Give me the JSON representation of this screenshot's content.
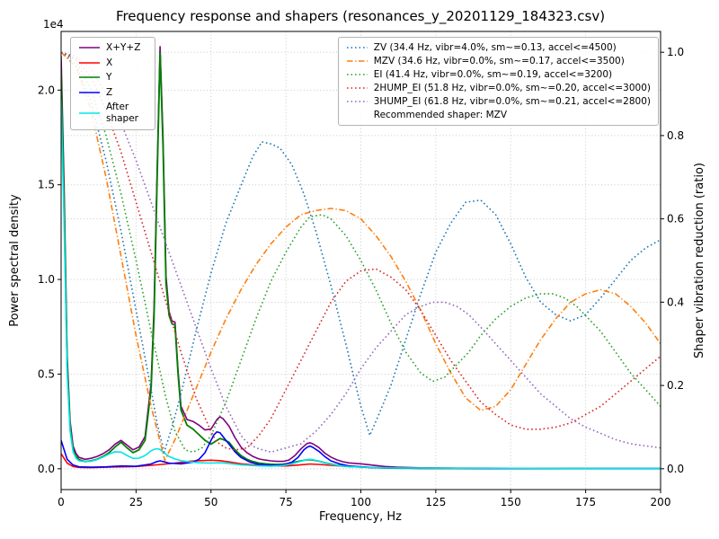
{
  "title": "Frequency response and shapers (resonances_y_20201129_184323.csv)",
  "axes": {
    "x": {
      "label": "Frequency, Hz",
      "min": 0,
      "max": 200,
      "ticks": [
        0,
        25,
        50,
        75,
        100,
        125,
        150,
        175,
        200
      ],
      "tick_labels": [
        "0",
        "25",
        "50",
        "75",
        "100",
        "125",
        "150",
        "175",
        "200"
      ]
    },
    "y_left": {
      "label": "Power spectral density",
      "offset_text": "1e4",
      "min": -1100,
      "max": 23100,
      "ticks": [
        0,
        5000,
        10000,
        15000,
        20000
      ],
      "tick_labels": [
        "0.0",
        "0.5",
        "1.0",
        "1.5",
        "2.0"
      ]
    },
    "y_right": {
      "label": "Shaper vibration reduction (ratio)",
      "min": -0.05,
      "max": 1.05,
      "ticks": [
        0,
        0.2,
        0.4,
        0.6,
        0.8,
        1.0
      ],
      "tick_labels": [
        "0.0",
        "0.2",
        "0.4",
        "0.6",
        "0.8",
        "1.0"
      ]
    }
  },
  "legend_psd": {
    "items": [
      {
        "label": "X+Y+Z",
        "color": "#800080",
        "style": "solid"
      },
      {
        "label": "X",
        "color": "#ff0000",
        "style": "solid"
      },
      {
        "label": "Y",
        "color": "#008000",
        "style": "solid"
      },
      {
        "label": "Z",
        "color": "#0000ff",
        "style": "solid"
      },
      {
        "label": "After shaper",
        "color": "#00e5e5",
        "style": "solid"
      }
    ]
  },
  "legend_shapers": {
    "items": [
      {
        "label": "ZV (34.4 Hz, vibr=4.0%, sm~=0.13, accel<=4500)",
        "color": "#1f77b4",
        "style": "dotted"
      },
      {
        "label": "MZV (34.6 Hz, vibr=0.0%, sm~=0.17, accel<=3500)",
        "color": "#ff7f0e",
        "style": "dashdot"
      },
      {
        "label": "EI (41.4 Hz, vibr=0.0%, sm~=0.19, accel<=3200)",
        "color": "#2ca02c",
        "style": "dotted"
      },
      {
        "label": "2HUMP_EI (51.8 Hz, vibr=0.0%, sm~=0.20, accel<=3000)",
        "color": "#d62728",
        "style": "dotted"
      },
      {
        "label": "3HUMP_EI (61.8 Hz, vibr=0.0%, sm~=0.21, accel<=2800)",
        "color": "#9467bd",
        "style": "dotted"
      }
    ],
    "note": "Recommended shaper: MZV"
  },
  "chart_data": {
    "type": "line",
    "x_unit": "Hz",
    "left_axis_unit": "power spectral density",
    "right_axis_unit": "vibration reduction ratio",
    "series": [
      {
        "name": "X+Y+Z",
        "axis": "left",
        "color": "#800080",
        "style": "solid",
        "width": 1.6,
        "x": [
          0,
          1,
          2,
          3,
          4,
          5,
          6,
          8,
          10,
          12,
          14,
          16,
          18,
          20,
          22,
          24,
          26,
          28,
          30,
          31,
          32,
          33,
          34,
          35,
          36,
          37,
          38,
          39,
          40,
          42,
          44,
          46,
          48,
          50,
          52,
          53,
          54,
          56,
          58,
          60,
          62,
          64,
          66,
          68,
          70,
          72,
          74,
          76,
          78,
          80,
          82,
          83,
          84,
          86,
          88,
          90,
          92,
          94,
          96,
          100,
          104,
          108,
          112,
          120,
          130,
          140,
          160,
          180,
          200
        ],
        "y": [
          21800,
          15000,
          6000,
          2500,
          1200,
          800,
          600,
          500,
          550,
          650,
          800,
          1000,
          1300,
          1500,
          1250,
          1000,
          1150,
          1700,
          4500,
          8500,
          15500,
          22300,
          17500,
          10200,
          8300,
          7800,
          7750,
          5200,
          3300,
          2600,
          2500,
          2300,
          2050,
          2100,
          2600,
          2750,
          2650,
          2250,
          1650,
          1150,
          850,
          650,
          520,
          460,
          420,
          390,
          390,
          460,
          700,
          1050,
          1330,
          1370,
          1320,
          1120,
          820,
          620,
          470,
          370,
          310,
          260,
          190,
          120,
          80,
          50,
          35,
          28,
          20,
          15,
          12
        ]
      },
      {
        "name": "X",
        "axis": "left",
        "color": "#ff0000",
        "style": "solid",
        "width": 1.6,
        "x": [
          0,
          2,
          4,
          6,
          10,
          15,
          20,
          25,
          30,
          35,
          38,
          40,
          43,
          46,
          50,
          53,
          56,
          60,
          65,
          70,
          75,
          80,
          83,
          86,
          90,
          95,
          100,
          105,
          110,
          120,
          140,
          170,
          200
        ],
        "y": [
          800,
          300,
          120,
          70,
          60,
          80,
          100,
          120,
          180,
          250,
          300,
          340,
          400,
          430,
          450,
          430,
          360,
          260,
          190,
          150,
          150,
          210,
          250,
          230,
          180,
          130,
          100,
          60,
          40,
          25,
          20,
          15,
          12
        ]
      },
      {
        "name": "Y",
        "axis": "left",
        "color": "#008000",
        "style": "solid",
        "width": 1.8,
        "x": [
          0,
          1,
          2,
          3,
          4,
          5,
          6,
          8,
          10,
          12,
          14,
          16,
          18,
          20,
          22,
          24,
          26,
          28,
          30,
          31,
          32,
          33,
          34,
          35,
          36,
          37,
          38,
          39,
          40,
          42,
          44,
          46,
          48,
          50,
          52,
          53,
          54,
          56,
          58,
          60,
          62,
          64,
          66,
          68,
          70,
          72,
          74,
          76,
          78,
          80,
          82,
          83,
          84,
          86,
          88,
          90,
          92,
          94,
          96,
          100,
          104,
          108,
          112,
          120,
          130,
          140,
          160,
          180,
          200
        ],
        "y": [
          21000,
          14000,
          5500,
          2200,
          1000,
          650,
          480,
          380,
          420,
          500,
          650,
          850,
          1150,
          1400,
          1100,
          850,
          1000,
          1500,
          4200,
          8000,
          15000,
          22000,
          17000,
          9800,
          8100,
          7650,
          7600,
          5000,
          3100,
          2300,
          2100,
          1800,
          1500,
          1300,
          1500,
          1600,
          1550,
          1400,
          1000,
          700,
          500,
          380,
          300,
          260,
          240,
          230,
          240,
          280,
          350,
          420,
          470,
          480,
          460,
          400,
          320,
          250,
          190,
          150,
          120,
          90,
          60,
          40,
          30,
          25,
          22,
          20,
          15,
          12,
          10
        ]
      },
      {
        "name": "Z",
        "axis": "left",
        "color": "#0000ff",
        "style": "solid",
        "width": 1.6,
        "x": [
          0,
          2,
          4,
          6,
          10,
          15,
          20,
          25,
          30,
          32,
          33,
          34,
          36,
          40,
          44,
          46,
          48,
          50,
          51,
          52,
          53,
          54,
          56,
          58,
          60,
          63,
          66,
          70,
          74,
          77,
          79,
          81,
          82,
          83,
          84,
          86,
          88,
          90,
          93,
          96,
          100,
          104,
          110,
          120,
          140,
          170,
          200
        ],
        "y": [
          1500,
          500,
          200,
          100,
          80,
          100,
          150,
          130,
          250,
          380,
          420,
          380,
          300,
          260,
          350,
          500,
          850,
          1500,
          1800,
          1950,
          1900,
          1700,
          1300,
          900,
          600,
          350,
          230,
          180,
          200,
          350,
          600,
          1000,
          1130,
          1200,
          1130,
          920,
          640,
          420,
          250,
          150,
          100,
          60,
          40,
          25,
          20,
          15,
          12
        ]
      },
      {
        "name": "After shaper",
        "axis": "left",
        "color": "#00e5e5",
        "style": "solid",
        "width": 1.6,
        "x": [
          0,
          1,
          2,
          3,
          4,
          5,
          6,
          8,
          10,
          12,
          14,
          16,
          18,
          20,
          22,
          24,
          26,
          28,
          30,
          31,
          32,
          33,
          34,
          36,
          38,
          40,
          43,
          46,
          50,
          53,
          56,
          60,
          65,
          70,
          74,
          77,
          80,
          82,
          83,
          84,
          86,
          88,
          90,
          93,
          96,
          100,
          105,
          110,
          120,
          140,
          170,
          200
        ],
        "y": [
          19500,
          13000,
          5000,
          2000,
          900,
          550,
          420,
          380,
          400,
          480,
          620,
          780,
          900,
          880,
          700,
          550,
          560,
          700,
          950,
          1020,
          1060,
          1020,
          880,
          650,
          520,
          430,
          360,
          320,
          300,
          320,
          280,
          210,
          160,
          140,
          170,
          260,
          400,
          480,
          500,
          480,
          400,
          310,
          240,
          160,
          110,
          85,
          60,
          45,
          35,
          28,
          22,
          20
        ]
      },
      {
        "name": "ZV",
        "axis": "right",
        "color": "#1f77b4",
        "style": "dotted",
        "width": 1.6,
        "x": [
          0,
          5,
          10,
          15,
          20,
          25,
          30,
          32,
          34.4,
          37,
          40,
          45,
          50,
          55,
          60,
          64,
          67,
          70,
          73,
          77,
          81,
          85,
          90,
          95,
          100,
          103,
          106,
          110,
          115,
          120,
          125,
          130,
          135,
          140,
          145,
          150,
          155,
          160,
          165,
          170,
          175,
          180,
          185,
          190,
          195,
          200
        ],
        "y": [
          1.0,
          0.97,
          0.88,
          0.74,
          0.57,
          0.38,
          0.19,
          0.11,
          0.04,
          0.1,
          0.18,
          0.33,
          0.47,
          0.59,
          0.68,
          0.75,
          0.785,
          0.78,
          0.77,
          0.73,
          0.66,
          0.57,
          0.44,
          0.3,
          0.15,
          0.08,
          0.13,
          0.2,
          0.31,
          0.42,
          0.52,
          0.59,
          0.64,
          0.645,
          0.61,
          0.54,
          0.46,
          0.4,
          0.37,
          0.355,
          0.37,
          0.41,
          0.455,
          0.5,
          0.53,
          0.55
        ]
      },
      {
        "name": "MZV",
        "axis": "right",
        "color": "#ff7f0e",
        "style": "dashdot",
        "width": 1.6,
        "x": [
          0,
          5,
          10,
          15,
          20,
          25,
          30,
          34.6,
          38,
          42,
          46,
          50,
          55,
          60,
          65,
          70,
          75,
          80,
          85,
          90,
          95,
          100,
          105,
          110,
          115,
          120,
          125,
          130,
          135,
          140,
          145,
          150,
          155,
          160,
          165,
          170,
          175,
          180,
          185,
          190,
          195,
          200
        ],
        "y": [
          1.0,
          0.965,
          0.86,
          0.7,
          0.51,
          0.32,
          0.15,
          0.02,
          0.07,
          0.14,
          0.21,
          0.28,
          0.36,
          0.43,
          0.49,
          0.54,
          0.58,
          0.61,
          0.62,
          0.625,
          0.62,
          0.6,
          0.56,
          0.51,
          0.45,
          0.38,
          0.3,
          0.23,
          0.17,
          0.14,
          0.15,
          0.19,
          0.25,
          0.31,
          0.36,
          0.4,
          0.42,
          0.43,
          0.42,
          0.39,
          0.35,
          0.3
        ]
      },
      {
        "name": "EI",
        "axis": "right",
        "color": "#2ca02c",
        "style": "dotted",
        "width": 1.6,
        "x": [
          0,
          5,
          10,
          15,
          20,
          25,
          30,
          35,
          38,
          41.4,
          44,
          47,
          50,
          55,
          60,
          65,
          70,
          75,
          80,
          83,
          87,
          90,
          95,
          100,
          105,
          110,
          115,
          120,
          124,
          128,
          132,
          136,
          140,
          145,
          150,
          155,
          160,
          164,
          168,
          172,
          176,
          180,
          185,
          190,
          195,
          200
        ],
        "y": [
          1.0,
          0.98,
          0.91,
          0.8,
          0.66,
          0.5,
          0.33,
          0.17,
          0.09,
          0.045,
          0.04,
          0.05,
          0.08,
          0.16,
          0.26,
          0.36,
          0.45,
          0.52,
          0.58,
          0.605,
          0.61,
          0.6,
          0.56,
          0.5,
          0.43,
          0.35,
          0.28,
          0.23,
          0.21,
          0.22,
          0.25,
          0.28,
          0.32,
          0.36,
          0.39,
          0.41,
          0.42,
          0.42,
          0.41,
          0.39,
          0.36,
          0.33,
          0.28,
          0.23,
          0.19,
          0.15
        ]
      },
      {
        "name": "2HUMP_EI",
        "axis": "right",
        "color": "#d62728",
        "style": "dotted",
        "width": 1.6,
        "x": [
          0,
          5,
          10,
          15,
          20,
          25,
          30,
          35,
          40,
          45,
          50,
          51.8,
          55,
          58,
          62,
          66,
          70,
          75,
          80,
          85,
          90,
          95,
          100,
          105,
          110,
          115,
          120,
          125,
          130,
          135,
          140,
          145,
          150,
          155,
          160,
          165,
          170,
          175,
          180,
          185,
          190,
          195,
          200
        ],
        "y": [
          1.0,
          0.985,
          0.94,
          0.86,
          0.76,
          0.64,
          0.52,
          0.4,
          0.28,
          0.17,
          0.09,
          0.065,
          0.05,
          0.045,
          0.05,
          0.08,
          0.12,
          0.19,
          0.26,
          0.33,
          0.4,
          0.45,
          0.475,
          0.48,
          0.46,
          0.43,
          0.38,
          0.32,
          0.26,
          0.21,
          0.16,
          0.13,
          0.105,
          0.095,
          0.095,
          0.1,
          0.11,
          0.13,
          0.15,
          0.18,
          0.21,
          0.24,
          0.27
        ]
      },
      {
        "name": "3HUMP_EI",
        "axis": "right",
        "color": "#9467bd",
        "style": "dotted",
        "width": 1.6,
        "x": [
          0,
          5,
          10,
          15,
          20,
          25,
          30,
          35,
          40,
          45,
          50,
          55,
          60,
          61.8,
          65,
          70,
          75,
          80,
          85,
          90,
          95,
          100,
          105,
          110,
          115,
          120,
          124,
          128,
          132,
          136,
          140,
          145,
          150,
          155,
          160,
          165,
          170,
          175,
          180,
          185,
          190,
          195,
          200
        ],
        "y": [
          1.0,
          0.99,
          0.96,
          0.9,
          0.83,
          0.74,
          0.64,
          0.54,
          0.44,
          0.34,
          0.24,
          0.15,
          0.08,
          0.065,
          0.05,
          0.04,
          0.05,
          0.06,
          0.09,
          0.13,
          0.18,
          0.24,
          0.29,
          0.33,
          0.37,
          0.39,
          0.4,
          0.4,
          0.39,
          0.37,
          0.34,
          0.3,
          0.26,
          0.22,
          0.18,
          0.15,
          0.12,
          0.1,
          0.085,
          0.07,
          0.06,
          0.055,
          0.05
        ]
      }
    ]
  }
}
